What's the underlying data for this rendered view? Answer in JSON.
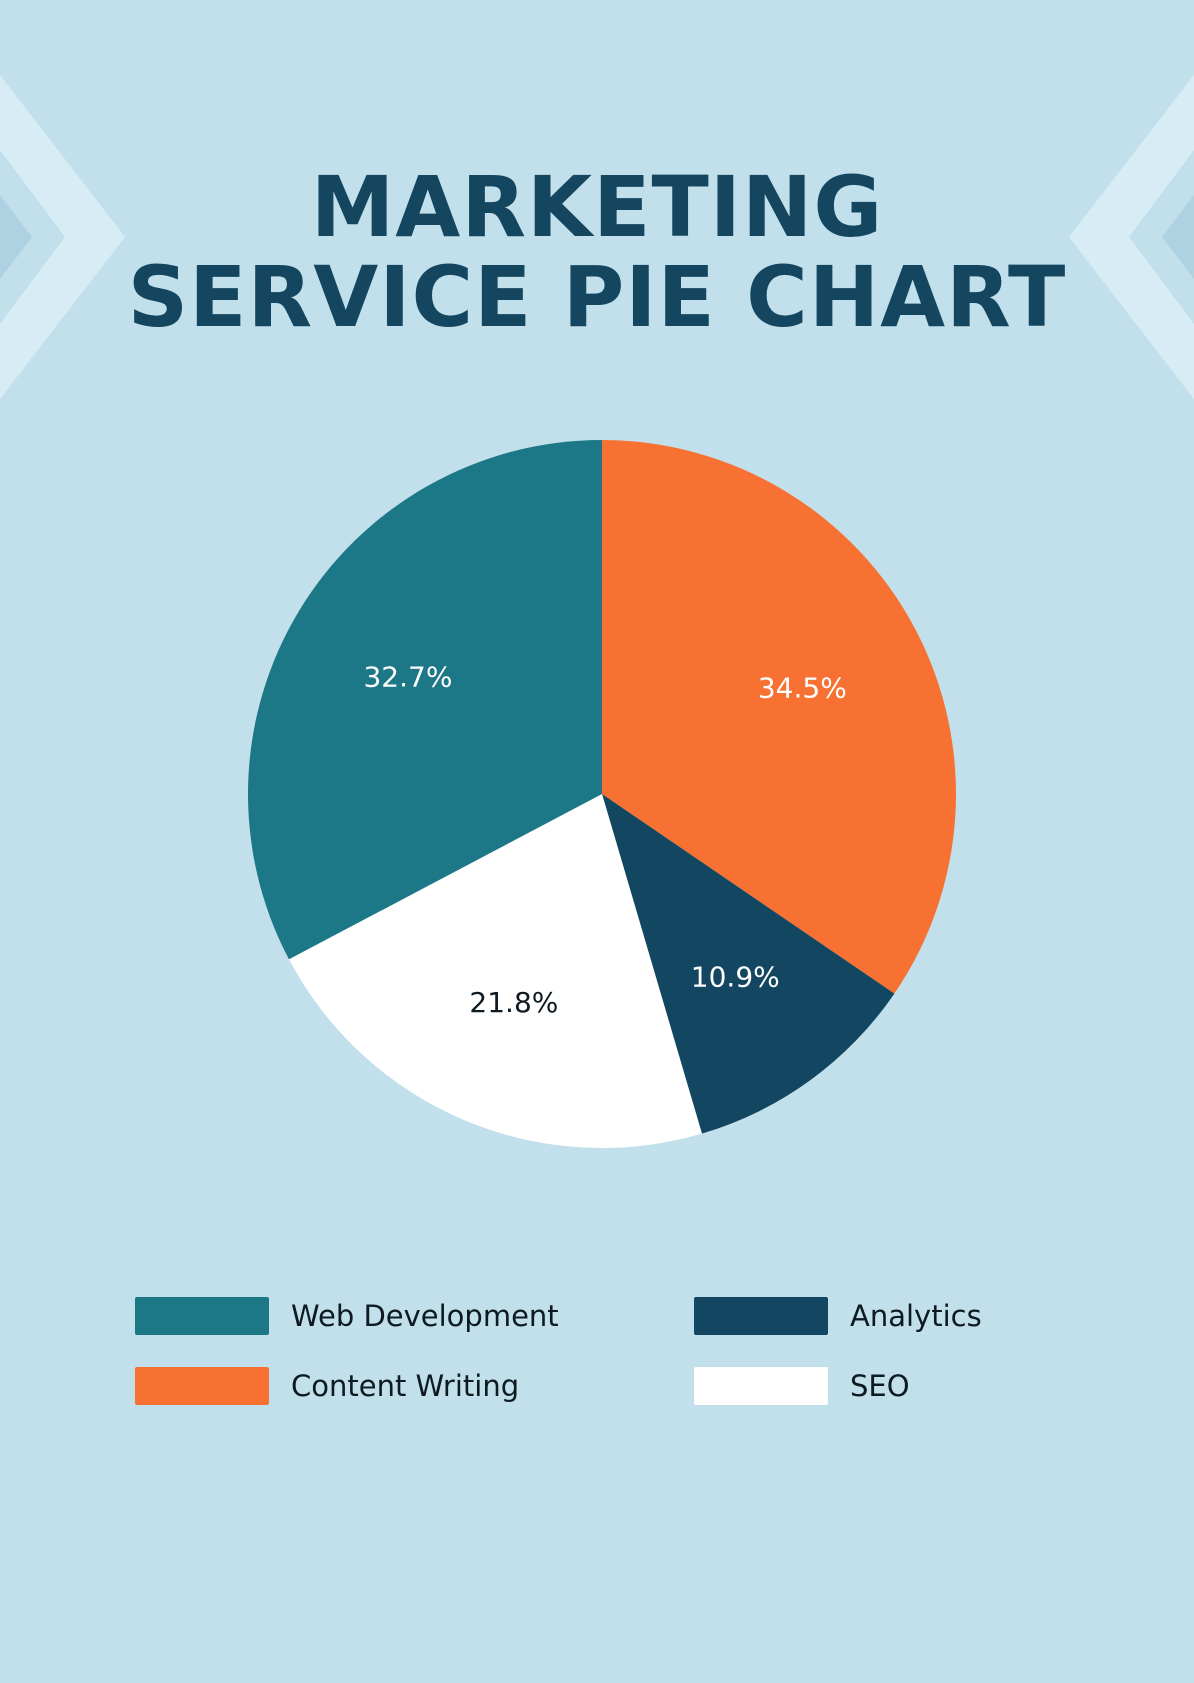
{
  "title": {
    "line1": "MARKETING",
    "line2": "SERVICE PIE CHART"
  },
  "colors": {
    "background": "#c2e0eb",
    "decoration_outer": "#d8ecf6",
    "decoration_inner": "#aed2e2",
    "title": "#14475f"
  },
  "chart_data": {
    "type": "pie",
    "start_angle_deg": 0,
    "direction": "clockwise",
    "slices": [
      {
        "name": "Content Writing",
        "value": 34.5,
        "label": "34.5%",
        "color": "#f77232",
        "label_color": "#ffffff"
      },
      {
        "name": "Analytics",
        "value": 10.9,
        "label": "10.9%",
        "color": "#134761",
        "label_color": "#ffffff"
      },
      {
        "name": "SEO",
        "value": 21.8,
        "label": "21.8%",
        "color": "#ffffff",
        "label_color": "#0d1a22"
      },
      {
        "name": "Web Development",
        "value": 32.7,
        "label": "32.7%",
        "color": "#1c7787",
        "label_color": "#ffffff"
      }
    ],
    "legend": {
      "placement": "bottom",
      "columns": [
        [
          "Web Development",
          "Content Writing"
        ],
        [
          "Analytics",
          "SEO"
        ]
      ]
    }
  },
  "legend": {
    "web_development": "Web Development",
    "content_writing": "Content Writing",
    "analytics": "Analytics",
    "seo": "SEO"
  }
}
